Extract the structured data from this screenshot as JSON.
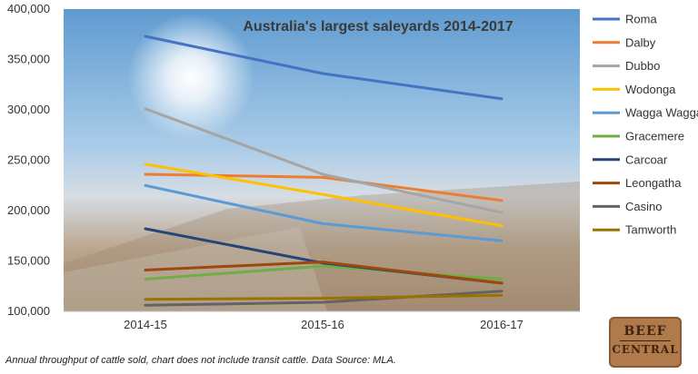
{
  "chart_data": {
    "type": "line",
    "title": "Australia's largest saleyards 2014-2017",
    "categories": [
      "2014-15",
      "2015-16",
      "2016-17"
    ],
    "ylim": [
      100000,
      400000
    ],
    "yticks": [
      100000,
      150000,
      200000,
      250000,
      300000,
      350000,
      400000
    ],
    "ytick_labels": [
      "100,000",
      "150,000",
      "200,000",
      "250,000",
      "300,000",
      "350,000",
      "400,000"
    ],
    "xlabel": "",
    "ylabel": "",
    "legend_position": "right",
    "grid": false,
    "series": [
      {
        "name": "Roma",
        "color": "#4472C4",
        "values": [
          373000,
          336000,
          311000
        ]
      },
      {
        "name": "Dalby",
        "color": "#ED7D31",
        "values": [
          236000,
          233000,
          210000
        ]
      },
      {
        "name": "Dubbo",
        "color": "#A5A5A5",
        "values": [
          301000,
          236000,
          198000
        ]
      },
      {
        "name": "Wodonga",
        "color": "#FFC000",
        "values": [
          246000,
          216000,
          185000
        ]
      },
      {
        "name": "Wagga Wagga",
        "color": "#5B9BD5",
        "values": [
          225000,
          187000,
          170000
        ]
      },
      {
        "name": "Gracemere",
        "color": "#70AD47",
        "values": [
          132000,
          145000,
          132000
        ]
      },
      {
        "name": "Carcoar",
        "color": "#264478",
        "values": [
          182000,
          148000,
          128000
        ]
      },
      {
        "name": "Leongatha",
        "color": "#9E480E",
        "values": [
          141000,
          149000,
          128000
        ]
      },
      {
        "name": "Casino",
        "color": "#636363",
        "values": [
          106000,
          109000,
          120000
        ]
      },
      {
        "name": "Tamworth",
        "color": "#997300",
        "values": [
          112000,
          113000,
          116000
        ]
      }
    ]
  },
  "caption": "Annual throughput of cattle sold, chart does not include transit cattle. Data Source: MLA.",
  "logo": {
    "line1": "BEEF",
    "line2": "CENTRAL"
  }
}
